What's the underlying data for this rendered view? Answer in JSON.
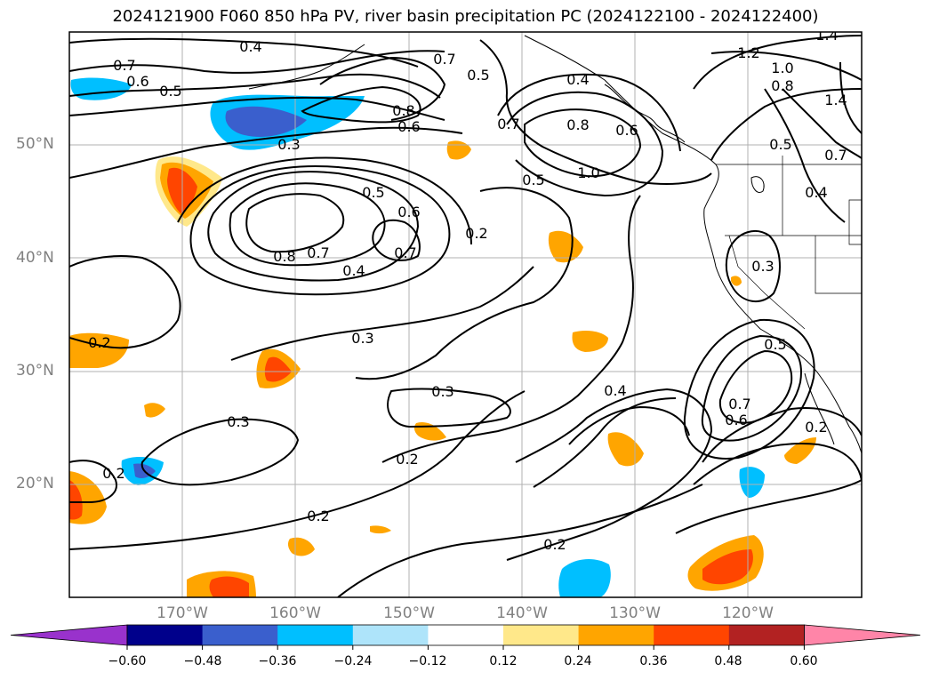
{
  "title": "2024121900 F060 850 hPa PV, river basin precipitation PC (2024122100 - 2024122400)",
  "lat_ticks": [
    "50°N",
    "40°N",
    "30°N",
    "20°N"
  ],
  "lon_ticks": [
    "170°W",
    "160°W",
    "150°W",
    "140°W",
    "130°W",
    "120°W"
  ],
  "contour_labels": [
    "0.4",
    "0.7",
    "0.6",
    "0.5",
    "0.3",
    "0.8",
    "0.6",
    "0.5",
    "0.7",
    "0.4",
    "0.8",
    "0.6",
    "1.0",
    "0.5",
    "0.7",
    "1.4",
    "1.2",
    "1.0",
    "0.8",
    "1.4",
    "0.5",
    "0.7",
    "0.4",
    "0.5",
    "0.6",
    "0.8",
    "0.7",
    "0.4",
    "0.7",
    "0.2",
    "0.3",
    "0.5",
    "0.2",
    "0.3",
    "0.3",
    "0.4",
    "0.7",
    "0.6",
    "0.2",
    "0.2",
    "0.3",
    "0.2",
    "0.2",
    "0.2"
  ],
  "colorbar": {
    "ticks": [
      "−0.60",
      "−0.48",
      "−0.36",
      "−0.24",
      "−0.12",
      "0.12",
      "0.24",
      "0.36",
      "0.48",
      "0.60"
    ],
    "colors": [
      "#9932cc",
      "#00008b",
      "#3a5fcd",
      "#00bfff",
      "#aee4fa",
      "#ffffff",
      "#ffe88a",
      "#ffa500",
      "#ff4500",
      "#b22222",
      "#ff85a8"
    ]
  }
}
